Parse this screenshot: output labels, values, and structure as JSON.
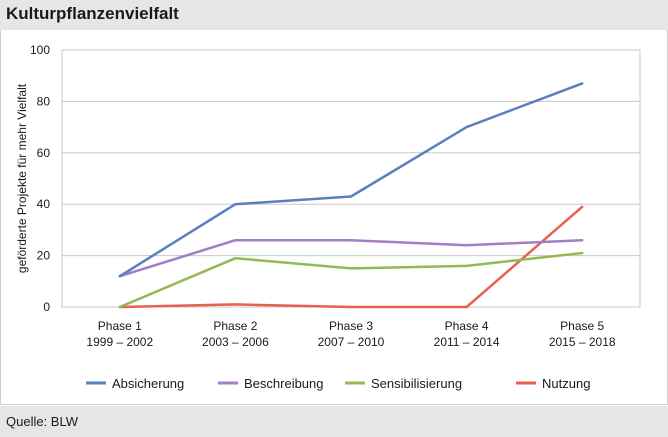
{
  "header": {
    "title": "Kulturpflanzenvielfalt"
  },
  "footer": {
    "source": "Quelle: BLW"
  },
  "colors": {
    "Absicherung": "#5b7fbf",
    "Beschreibung": "#a07fc5",
    "Sensibilisierung": "#95b954",
    "Nutzung": "#e8604d"
  },
  "chart_data": {
    "type": "line",
    "title": "Kulturpflanzenvielfalt",
    "ylabel": "geförderte Projekte für mehr Vielfalt",
    "xlabel": "",
    "ylim": [
      0,
      100
    ],
    "yticks": [
      0,
      20,
      40,
      60,
      80,
      100
    ],
    "grid": true,
    "legend_position": "bottom",
    "categories": [
      [
        "Phase 1",
        "1999 – 2002"
      ],
      [
        "Phase 2",
        "2003 – 2006"
      ],
      [
        "Phase 3",
        "2007 – 2010"
      ],
      [
        "Phase 4",
        "2011 – 2014"
      ],
      [
        "Phase 5",
        "2015 – 2018"
      ]
    ],
    "series": [
      {
        "name": "Absicherung",
        "values": [
          12,
          40,
          43,
          70,
          87
        ]
      },
      {
        "name": "Beschreibung",
        "values": [
          12,
          26,
          26,
          24,
          26
        ]
      },
      {
        "name": "Sensibilisierung",
        "values": [
          0,
          19,
          15,
          16,
          21
        ]
      },
      {
        "name": "Nutzung",
        "values": [
          0,
          1,
          0,
          0,
          39
        ]
      }
    ]
  }
}
